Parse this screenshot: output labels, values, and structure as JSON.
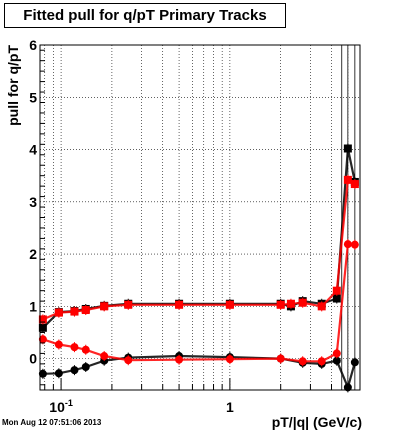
{
  "title": "Fitted pull for q/pT  Primary Tracks",
  "footer": "Mon Aug 12 07:51:06 2013",
  "chart_data": {
    "type": "scatter",
    "title": "Fitted pull for q/pT  Primary Tracks",
    "xlabel": "pT/|q| (GeV/c)",
    "ylabel": "pull for q/pT",
    "xscale": "log",
    "xlim": [
      0.075,
      5.9
    ],
    "ylim": [
      -0.6,
      6
    ],
    "grid": true,
    "x_ticks": [
      {
        "value": 0.1,
        "base": "10",
        "exp": "-1"
      },
      {
        "value": 1,
        "label": "1"
      }
    ],
    "y_ticks": [
      0,
      1,
      2,
      3,
      4,
      5,
      6
    ],
    "series": [
      {
        "color": "#000000",
        "marker": "square",
        "x": [
          0.078,
          0.097,
          0.12,
          0.14,
          0.18,
          0.25,
          0.5,
          1.0,
          2.0,
          2.3,
          2.7,
          3.5,
          4.3,
          5.0,
          5.5
        ],
        "y": [
          0.59,
          0.89,
          0.91,
          0.95,
          1.01,
          1.05,
          1.05,
          1.05,
          1.05,
          1.0,
          1.1,
          1.05,
          1.15,
          4.02,
          3.38
        ]
      },
      {
        "color": "#ff0000",
        "marker": "square",
        "x": [
          0.078,
          0.097,
          0.12,
          0.14,
          0.18,
          0.25,
          0.5,
          1.0,
          2.0,
          2.3,
          2.7,
          3.5,
          4.3,
          5.0,
          5.5
        ],
        "y": [
          0.75,
          0.88,
          0.9,
          0.93,
          1.0,
          1.03,
          1.03,
          1.03,
          1.03,
          1.05,
          1.07,
          1.0,
          1.3,
          3.42,
          3.34
        ]
      },
      {
        "color": "#000000",
        "marker": "circle",
        "x": [
          0.078,
          0.097,
          0.12,
          0.14,
          0.18,
          0.25,
          0.5,
          1.0,
          2.0,
          2.7,
          3.5,
          4.3,
          5.0,
          5.5
        ],
        "y": [
          -0.29,
          -0.28,
          -0.22,
          -0.16,
          -0.04,
          0.02,
          0.05,
          0.03,
          0.0,
          -0.08,
          -0.1,
          -0.04,
          -0.55,
          -0.07
        ]
      },
      {
        "color": "#ff0000",
        "marker": "circle",
        "x": [
          0.078,
          0.097,
          0.12,
          0.14,
          0.18,
          0.25,
          0.5,
          1.0,
          2.0,
          2.7,
          3.5,
          4.3,
          5.0,
          5.5
        ],
        "y": [
          0.37,
          0.27,
          0.22,
          0.17,
          0.05,
          -0.03,
          -0.02,
          -0.01,
          0.0,
          -0.05,
          -0.05,
          0.1,
          2.19,
          2.18
        ]
      }
    ]
  }
}
